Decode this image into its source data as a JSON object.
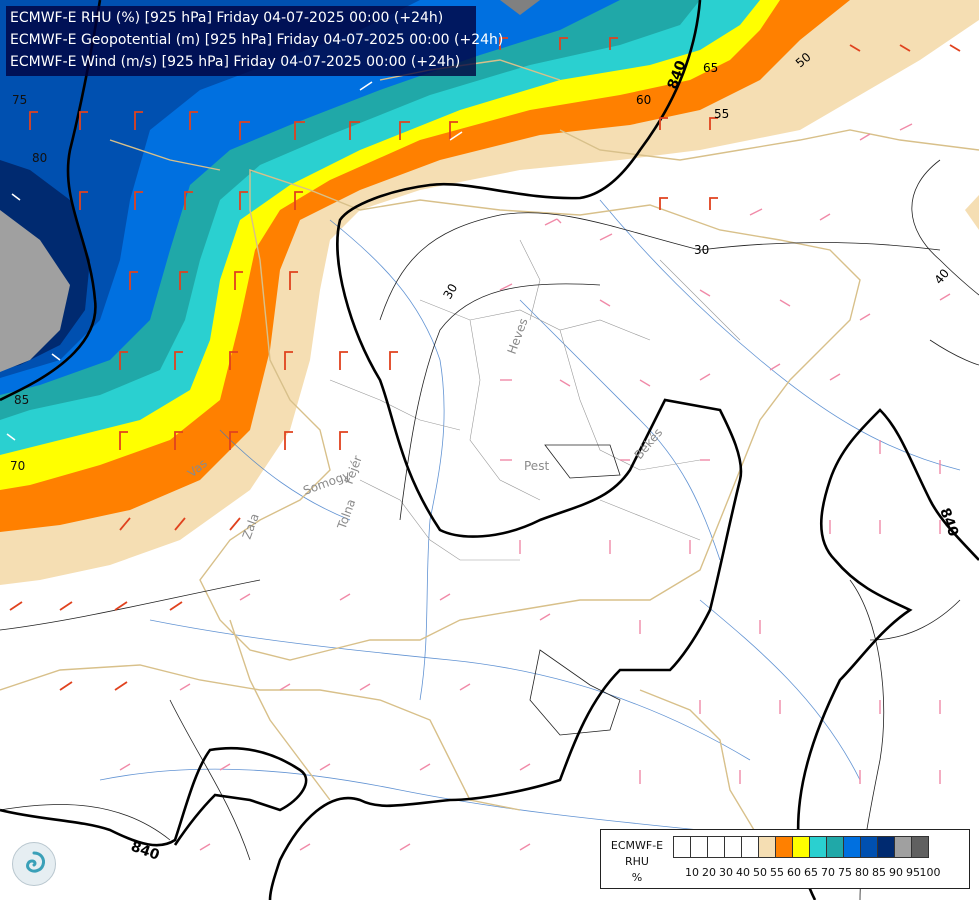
{
  "header": {
    "line1": "ECMWF-E RHU (%) [925 hPa] Friday 04-07-2025 00:00 (+24h)",
    "line2": "ECMWF-E Geopotential (m) [925 hPa] Friday 04-07-2025 00:00 (+24h)",
    "line3": "ECMWF-E Wind (m/s) [925 hPa] Friday 04-07-2025 00:00 (+24h)"
  },
  "legend": {
    "title_line1": "ECMWF-E",
    "title_line2": "RHU",
    "title_line3": "%",
    "ticks": [
      "10",
      "20",
      "30",
      "40",
      "50",
      "55",
      "60",
      "65",
      "70",
      "75",
      "80",
      "85",
      "90",
      "95",
      "100"
    ],
    "colors": [
      "#ffffff",
      "#ffffff",
      "#ffffff",
      "#ffffff",
      "#ffffff",
      "#f5deb3",
      "#ff8000",
      "#ffff00",
      "#2ad0d0",
      "#20a8a8",
      "#0070e0",
      "#0050b0",
      "#002a70",
      "#a0a0a0",
      "#606060"
    ]
  },
  "contour_labels": {
    "geo_840_a": "840",
    "geo_840_b": "840",
    "geo_840_c": "840",
    "rh_65": "65",
    "rh_60": "60",
    "rh_55": "55",
    "rh_50": "50",
    "rh_75": "75",
    "rh_80": "80",
    "rh_85": "85",
    "rh_70": "70",
    "rh_30a": "30",
    "rh_30b": "30",
    "rh_40": "40"
  },
  "place_labels": {
    "pest": "Pest",
    "heves": "Heves",
    "bekes": "Békés",
    "somogy": "Somogy",
    "fejer": "Fejér",
    "tolna": "Tolna",
    "zala": "Zala",
    "vas": "Vas"
  }
}
